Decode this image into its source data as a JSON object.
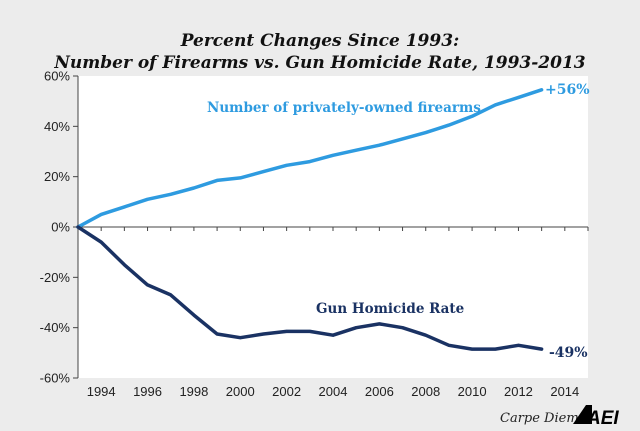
{
  "chart_data": {
    "type": "line",
    "title": "Percent Changes Since 1993:",
    "subtitle": "Number of Firearms vs. Gun Homicide Rate, 1993-2013",
    "x": [
      1993,
      1994,
      1995,
      1996,
      1997,
      1998,
      1999,
      2000,
      2001,
      2002,
      2003,
      2004,
      2005,
      2006,
      2007,
      2008,
      2009,
      2010,
      2011,
      2012,
      2013
    ],
    "xlim": [
      1993,
      2015
    ],
    "x_ticks": [
      "1994",
      "1996",
      "1998",
      "2000",
      "2002",
      "2004",
      "2006",
      "2008",
      "2010",
      "2012",
      "2014"
    ],
    "y_ticks": [
      "60%",
      "40%",
      "20%",
      "0%",
      "-20%",
      "-40%",
      "-60%"
    ],
    "ylim": [
      -60,
      60
    ],
    "grid": false,
    "legend": "none",
    "series": [
      {
        "name": "Number of privately-owned firearms",
        "color": "#2e9be0",
        "end_label": "+56%",
        "values": [
          0,
          5,
          8,
          11,
          13,
          15.5,
          18.5,
          19.5,
          22,
          24.5,
          26,
          28.5,
          30.5,
          32.5,
          35,
          37.5,
          40.5,
          44,
          48.5,
          51.5,
          54.5
        ]
      },
      {
        "name": "Gun Homicide Rate",
        "color": "#1a3263",
        "end_label": "-49%",
        "values": [
          0,
          -6,
          -15,
          -23,
          -27,
          -35,
          -42.5,
          -44,
          -42.5,
          -41.5,
          -41.5,
          -43,
          -40,
          -38.5,
          -40,
          -43,
          -47,
          -48.5,
          -48.5,
          -47,
          -48.5
        ]
      }
    ],
    "credit": "Carpe Diem",
    "logo": "AEI"
  }
}
